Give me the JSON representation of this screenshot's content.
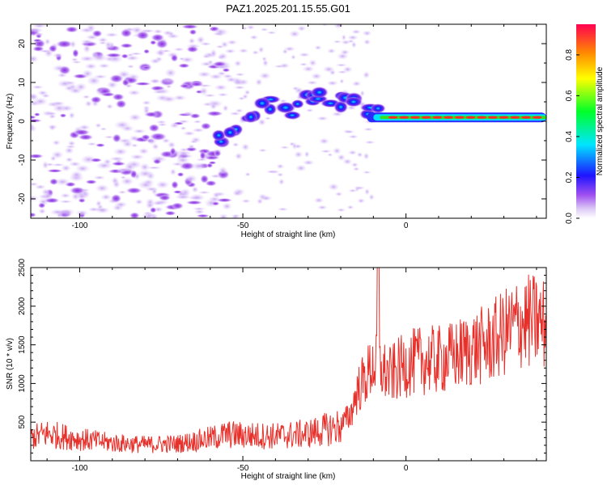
{
  "title": "PAZ1.2025.201.15.55.G01",
  "chart_data": [
    {
      "type": "heatmap",
      "xlabel": "Height of straight line (km)",
      "ylabel": "Frequency (Hz)",
      "xlim": [
        -115,
        43
      ],
      "ylim": [
        -25,
        25
      ],
      "xticks": [
        "-100",
        "-50",
        "0"
      ],
      "yticks": [
        "20",
        "10",
        "0",
        "-10",
        "-20"
      ],
      "colorbar": {
        "label": "Normalized spectral amplitude",
        "range": [
          0.0,
          0.95
        ],
        "ticks": [
          "0.0",
          "0.2",
          "0.4",
          "0.6",
          "0.8"
        ]
      },
      "signal": {
        "description_values": [
          {
            "x": -57,
            "y": -4
          },
          {
            "x": -52,
            "y": -2
          },
          {
            "x": -48,
            "y": 2
          },
          {
            "x": -43,
            "y": 4
          },
          {
            "x": -35,
            "y": 3
          },
          {
            "x": -30,
            "y": 5
          },
          {
            "x": -25,
            "y": 6
          },
          {
            "x": -20,
            "y": 5
          },
          {
            "x": -15,
            "y": 4
          },
          {
            "x": -10,
            "y": 2
          },
          {
            "x": -5,
            "y": 1
          },
          {
            "x": 0,
            "y": 1
          },
          {
            "x": 10,
            "y": 1
          },
          {
            "x": 20,
            "y": 1
          },
          {
            "x": 30,
            "y": 1
          },
          {
            "x": 43,
            "y": 1
          }
        ]
      }
    },
    {
      "type": "line",
      "xlabel": "Height of straight line (km)",
      "ylabel": "SNR (10 * v/v)",
      "xlim": [
        -115,
        43
      ],
      "ylim": [
        0,
        2500
      ],
      "xticks": [
        "-100",
        "-50",
        "0"
      ],
      "yticks": [
        "2500",
        "2000",
        "1500",
        "1000",
        "500"
      ],
      "color": "#e8302b",
      "series": [
        {
          "x": [
            -115,
            -110,
            -100,
            -90,
            -80,
            -70,
            -60,
            -55,
            -50,
            -40,
            -30,
            -20,
            -17,
            -15,
            -12,
            -10,
            -8,
            -5,
            0,
            5,
            10,
            15,
            20,
            25,
            30,
            35,
            40,
            43
          ],
          "y": [
            300,
            350,
            280,
            230,
            210,
            220,
            290,
            340,
            330,
            320,
            350,
            450,
            600,
            900,
            1100,
            1250,
            1200,
            1100,
            1250,
            1300,
            1300,
            1350,
            1450,
            1500,
            1650,
            1800,
            1800,
            1750
          ]
        }
      ]
    }
  ]
}
